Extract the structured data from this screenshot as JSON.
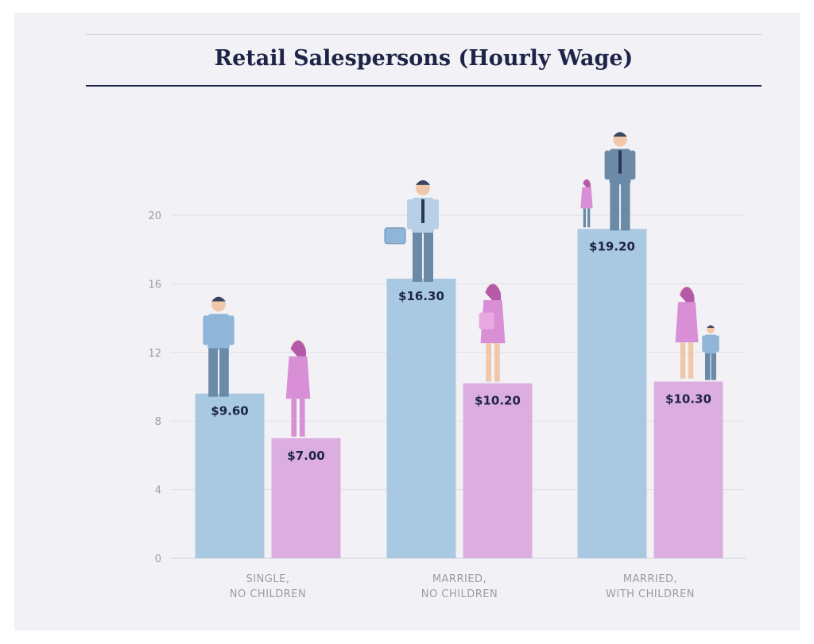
{
  "chart_data": {
    "type": "bar",
    "title": "Retail Salespersons (Hourly Wage)",
    "xlabel": "",
    "ylabel": "",
    "ylim": [
      0,
      20
    ],
    "yticks": [
      0,
      4,
      8,
      12,
      16,
      20
    ],
    "grid": true,
    "categories": [
      [
        "SINGLE,",
        "NO CHILDREN"
      ],
      [
        "MARRIED,",
        "NO CHILDREN"
      ],
      [
        "MARRIED,",
        "WITH CHILDREN"
      ]
    ],
    "series": [
      {
        "values": [
          9.6,
          16.3,
          19.2
        ],
        "labels": [
          "$9.60",
          "$16.30",
          "$19.20"
        ],
        "color": "#a9c8e2"
      },
      {
        "values": [
          7.0,
          10.2,
          10.3
        ],
        "labels": [
          "$7.00",
          "$10.20",
          "$10.30"
        ],
        "color": "#dcaee0"
      }
    ],
    "figure_icons": [
      "man-figure-icon",
      "woman-figure-icon",
      "businessman-with-briefcase-icon",
      "woman-with-bag-icon",
      "father-with-daughter-icon",
      "mother-with-son-icon"
    ],
    "colors": {
      "axis_text": "#9b9ba3",
      "grid": "#dedee4",
      "label_text": "#1e2447",
      "male_figure": "#6b8aa8",
      "female_figure": "#d98fd6"
    }
  }
}
